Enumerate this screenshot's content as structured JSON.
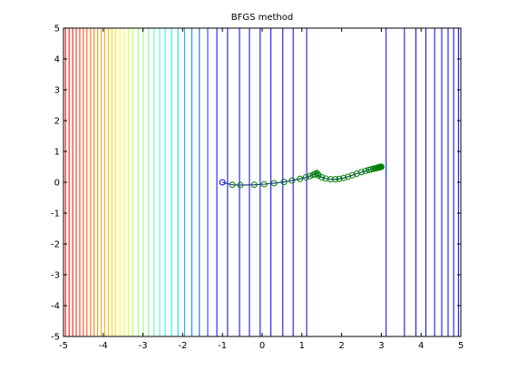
{
  "chart_data": {
    "type": "line",
    "title": "BFGS method",
    "xlabel": "",
    "ylabel": "",
    "xlim": [
      -5,
      5
    ],
    "ylim": [
      -5,
      5
    ],
    "x_ticks": [
      "-5",
      "-4",
      "-3",
      "-2",
      "-1",
      "0",
      "1",
      "2",
      "3",
      "4",
      "5"
    ],
    "y_ticks": [
      "-5",
      "-4",
      "-3",
      "-2",
      "-1",
      "0",
      "1",
      "2",
      "3",
      "4",
      "5"
    ],
    "grid": false,
    "contour_levels_x": [
      -4.95,
      -4.86,
      -4.77,
      -4.68,
      -4.59,
      -4.5,
      -4.41,
      -4.32,
      -4.23,
      -4.14,
      -4.05,
      -3.96,
      -3.87,
      -3.78,
      -3.69,
      -3.58,
      -3.47,
      -3.36,
      -3.25,
      -3.12,
      -2.99,
      -2.86,
      -2.72,
      -2.58,
      -2.44,
      -2.28,
      -2.12,
      -1.95,
      -1.77,
      -1.58,
      -1.37,
      -1.14,
      -0.87,
      -0.57,
      -0.32,
      -0.05,
      0.22,
      0.52,
      0.78,
      1.12,
      3.12,
      3.58,
      3.87,
      4.12,
      4.34,
      4.52,
      4.68,
      4.82,
      4.94
    ],
    "series": [
      {
        "name": "",
        "x": [
          -1.0,
          -0.75,
          -0.55,
          -0.2,
          0.05,
          0.3,
          0.55,
          0.75,
          0.95,
          1.1,
          1.2,
          1.28,
          1.33,
          1.37,
          1.4,
          1.42,
          1.5,
          1.6,
          1.72,
          1.84,
          1.94,
          2.05,
          2.16,
          2.27,
          2.38,
          2.5,
          2.6,
          2.68,
          2.74,
          2.8,
          2.84,
          2.87,
          2.9,
          2.92,
          2.94,
          2.95,
          2.96,
          2.97,
          2.98,
          2.99,
          3.0
        ],
        "y": [
          0.0,
          -0.08,
          -0.09,
          -0.08,
          -0.06,
          -0.03,
          0.01,
          0.06,
          0.11,
          0.16,
          0.2,
          0.24,
          0.27,
          0.3,
          0.27,
          0.22,
          0.16,
          0.12,
          0.1,
          0.1,
          0.11,
          0.14,
          0.18,
          0.23,
          0.28,
          0.33,
          0.37,
          0.4,
          0.42,
          0.44,
          0.45,
          0.46,
          0.47,
          0.48,
          0.48,
          0.49,
          0.49,
          0.5,
          0.5,
          0.5,
          0.5
        ]
      }
    ]
  },
  "colors": {
    "line": "#1f3a8f",
    "marker": "#008000",
    "end_marker": "#0000ff",
    "contour_low": "#000090",
    "contour_high": "#900000"
  }
}
